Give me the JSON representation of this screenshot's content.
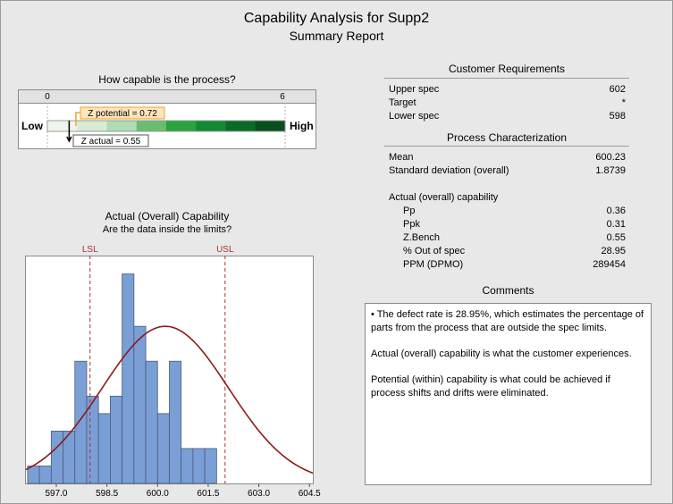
{
  "header": {
    "title": "Capability Analysis for Supp2",
    "subtitle": "Summary Report"
  },
  "gauge": {
    "heading": "How capable is the process?",
    "scale_min_label": "0",
    "scale_max_label": "6",
    "scale_min": 0,
    "scale_max": 6,
    "low_label": "Low",
    "high_label": "High",
    "z_potential_label": "Z potential = 0.72",
    "z_potential": 0.72,
    "z_actual_label": "Z actual = 0.55",
    "z_actual": 0.55,
    "band_colors": [
      "#eef5ea",
      "#d6ecd3",
      "#aedcb4",
      "#69bd6f",
      "#2aa33f",
      "#128a33",
      "#0a6b27",
      "#074f1c"
    ],
    "accent_potential": "#f0a030",
    "box_potential_bg": "#fde6bb"
  },
  "histogram_panel": {
    "heading": "Actual (Overall) Capability",
    "subheading": "Are the data inside the limits?"
  },
  "chart_data": {
    "type": "bar",
    "bins_start": 596.15,
    "bin_width": 0.35,
    "counts": [
      1,
      1,
      3,
      3,
      7,
      5,
      4,
      5,
      12,
      9,
      7,
      4,
      7,
      2,
      2,
      2
    ],
    "xlim": [
      596.1,
      604.6
    ],
    "ylim": [
      0,
      13
    ],
    "xticks": [
      597.0,
      598.5,
      600.0,
      601.5,
      603.0,
      604.5
    ],
    "xtick_labels": [
      "597.0",
      "598.5",
      "600.0",
      "601.5",
      "603.0",
      "604.5"
    ],
    "lsl": 598,
    "lsl_label": "LSL",
    "usl": 602,
    "usl_label": "USL",
    "normal_curve": {
      "mean": 600.23,
      "sd": 1.8739,
      "peak_count": 9.0
    },
    "bar_color": "#7a9fd6",
    "curve_color": "#8b1a1a",
    "limit_color": "#a83232"
  },
  "customer_requirements": {
    "heading": "Customer Requirements",
    "rows": [
      {
        "label": "Upper spec",
        "value": "602"
      },
      {
        "label": "Target",
        "value": "*"
      },
      {
        "label": "Lower spec",
        "value": "598"
      }
    ]
  },
  "process_characterization": {
    "heading": "Process Characterization",
    "rows": [
      {
        "label": "Mean",
        "value": "600.23"
      },
      {
        "label": "Standard deviation (overall)",
        "value": "1.8739"
      }
    ],
    "capability_heading": "Actual (overall) capability",
    "capability_rows": [
      {
        "label": "Pp",
        "value": "0.36"
      },
      {
        "label": "Ppk",
        "value": "0.31"
      },
      {
        "label": "Z.Bench",
        "value": "0.55"
      },
      {
        "label": "% Out of spec",
        "value": "28.95"
      },
      {
        "label": "PPM (DPMO)",
        "value": "289454"
      }
    ]
  },
  "comments": {
    "heading": "Comments",
    "p1": "• The defect rate is 28.95%, which estimates the percentage of parts from the process that are outside the spec limits.",
    "p2": "Actual (overall) capability is what the customer experiences.",
    "p3": "Potential (within) capability is what could be achieved if process shifts and drifts were eliminated."
  }
}
